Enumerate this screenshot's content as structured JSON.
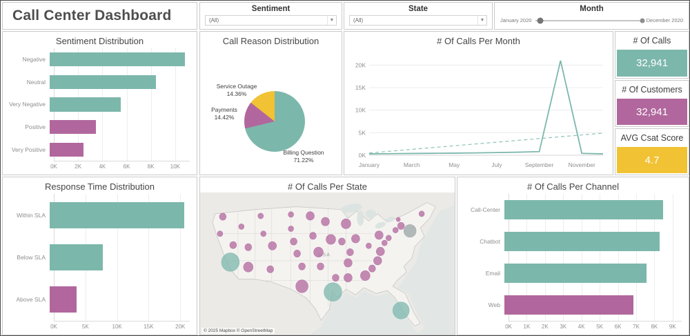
{
  "app": {
    "title": "Call Center Dashboard"
  },
  "palette": {
    "teal": "#7cb7ac",
    "purple": "#b1679d",
    "gray": "#9aa5a4",
    "yellow": "#f1c233"
  },
  "filters": {
    "sentiment": {
      "label": "Sentiment",
      "value": "(All)"
    },
    "state": {
      "label": "State",
      "value": "(All)"
    },
    "month": {
      "label": "Month",
      "start": "January 2020",
      "end": "December 2020"
    }
  },
  "kpis": [
    {
      "label": "# Of Calls",
      "value": "32,941",
      "color": "teal"
    },
    {
      "label": "# Of Customers",
      "value": "32,941",
      "color": "purple"
    },
    {
      "label": "AVG Csat Score",
      "value": "4.7",
      "color": "yellow"
    }
  ],
  "chart_data": [
    {
      "id": "sentiment_distribution",
      "type": "bar",
      "title": "Sentiment Distribution",
      "orientation": "horizontal",
      "categories": [
        "Negative",
        "Neutral",
        "Very Negative",
        "Positive",
        "Very Positive"
      ],
      "values": [
        10800,
        8500,
        5700,
        3700,
        2700
      ],
      "colors": [
        "teal",
        "teal",
        "teal",
        "purple",
        "purple"
      ],
      "xlim": [
        0,
        11200
      ],
      "xticks": {
        "values": [
          0,
          2000,
          4000,
          6000,
          8000,
          10000
        ],
        "labels": [
          "0K",
          "2K",
          "4K",
          "6K",
          "8K",
          "10K"
        ]
      }
    },
    {
      "id": "call_reason",
      "type": "pie",
      "title": "Call Reason Distribution",
      "slices": [
        {
          "label": "Billing Question",
          "value": 71.22,
          "pct_label": "71.22%",
          "color": "teal"
        },
        {
          "label": "Payments",
          "value": 14.42,
          "pct_label": "14.42%",
          "color": "purple"
        },
        {
          "label": "Service Outage",
          "value": 14.36,
          "pct_label": "14.36%",
          "color": "yellow"
        }
      ]
    },
    {
      "id": "calls_per_month",
      "type": "line",
      "title": "# Of Calls Per Month",
      "x": [
        "January",
        "February",
        "March",
        "April",
        "May",
        "June",
        "July",
        "August",
        "September",
        "October",
        "November",
        "December"
      ],
      "values": [
        300,
        340,
        390,
        430,
        470,
        520,
        590,
        680,
        800,
        21000,
        420,
        300
      ],
      "trend_line": [
        500,
        4900
      ],
      "ylim": [
        0,
        22500
      ],
      "yticks": {
        "values": [
          0,
          5000,
          10000,
          15000,
          20000
        ],
        "labels": [
          "0K",
          "5K",
          "10K",
          "15K",
          "20K"
        ]
      },
      "xtick_labels": [
        "January",
        "March",
        "May",
        "July",
        "September",
        "November"
      ]
    },
    {
      "id": "response_time",
      "type": "bar",
      "title": "Response Time Distribution",
      "orientation": "horizontal",
      "categories": [
        "Within SLA",
        "Below SLA",
        "Above SLA"
      ],
      "values": [
        20600,
        8200,
        4100
      ],
      "colors": [
        "teal",
        "teal",
        "purple"
      ],
      "xlim": [
        0,
        21500
      ],
      "xticks": {
        "values": [
          0,
          5000,
          10000,
          15000,
          20000
        ],
        "labels": [
          "0K",
          "5K",
          "10K",
          "15K",
          "20K"
        ]
      }
    },
    {
      "id": "calls_per_state",
      "type": "map",
      "title": "# Of Calls Per State",
      "country_label": "USA",
      "attribution": "© 2025 Mapbox © OpenStreetMap",
      "bubbles": [
        {
          "x": 33,
          "y": 34,
          "r": 5,
          "c": "purple"
        },
        {
          "x": 29,
          "y": 58,
          "r": 4,
          "c": "purple"
        },
        {
          "x": 44,
          "y": 98,
          "r": 13,
          "c": "teal"
        },
        {
          "x": 48,
          "y": 74,
          "r": 5,
          "c": "purple"
        },
        {
          "x": 60,
          "y": 48,
          "r": 4,
          "c": "purple"
        },
        {
          "x": 88,
          "y": 33,
          "r": 4,
          "c": "purple"
        },
        {
          "x": 92,
          "y": 58,
          "r": 4,
          "c": "purple"
        },
        {
          "x": 70,
          "y": 77,
          "r": 5,
          "c": "purple"
        },
        {
          "x": 70,
          "y": 105,
          "r": 7,
          "c": "purple"
        },
        {
          "x": 105,
          "y": 75,
          "r": 6,
          "c": "purple"
        },
        {
          "x": 102,
          "y": 108,
          "r": 5,
          "c": "purple"
        },
        {
          "x": 132,
          "y": 31,
          "r": 4,
          "c": "purple"
        },
        {
          "x": 132,
          "y": 51,
          "r": 4,
          "c": "purple"
        },
        {
          "x": 136,
          "y": 69,
          "r": 5,
          "c": "purple"
        },
        {
          "x": 141,
          "y": 86,
          "r": 5,
          "c": "purple"
        },
        {
          "x": 148,
          "y": 104,
          "r": 5,
          "c": "purple"
        },
        {
          "x": 148,
          "y": 132,
          "r": 9,
          "c": "purple"
        },
        {
          "x": 160,
          "y": 33,
          "r": 6,
          "c": "purple"
        },
        {
          "x": 164,
          "y": 61,
          "r": 5,
          "c": "purple"
        },
        {
          "x": 172,
          "y": 84,
          "r": 7,
          "c": "purple"
        },
        {
          "x": 175,
          "y": 104,
          "r": 5,
          "c": "purple"
        },
        {
          "x": 193,
          "y": 140,
          "r": 13,
          "c": "teal"
        },
        {
          "x": 182,
          "y": 41,
          "r": 6,
          "c": "purple"
        },
        {
          "x": 190,
          "y": 66,
          "r": 7,
          "c": "purple"
        },
        {
          "x": 197,
          "y": 120,
          "r": 5,
          "c": "purple"
        },
        {
          "x": 212,
          "y": 44,
          "r": 7,
          "c": "purple"
        },
        {
          "x": 206,
          "y": 69,
          "r": 5,
          "c": "purple"
        },
        {
          "x": 226,
          "y": 65,
          "r": 6,
          "c": "purple"
        },
        {
          "x": 218,
          "y": 84,
          "r": 5,
          "c": "purple"
        },
        {
          "x": 215,
          "y": 99,
          "r": 6,
          "c": "purple"
        },
        {
          "x": 215,
          "y": 120,
          "r": 6,
          "c": "purple"
        },
        {
          "x": 240,
          "y": 117,
          "r": 7,
          "c": "purple"
        },
        {
          "x": 250,
          "y": 107,
          "r": 5,
          "c": "purple"
        },
        {
          "x": 258,
          "y": 96,
          "r": 6,
          "c": "purple"
        },
        {
          "x": 262,
          "y": 83,
          "r": 6,
          "c": "purple"
        },
        {
          "x": 245,
          "y": 75,
          "r": 4,
          "c": "purple"
        },
        {
          "x": 260,
          "y": 60,
          "r": 6,
          "c": "purple"
        },
        {
          "x": 268,
          "y": 71,
          "r": 4,
          "c": "purple"
        },
        {
          "x": 274,
          "y": 64,
          "r": 4,
          "c": "purple"
        },
        {
          "x": 284,
          "y": 53,
          "r": 4,
          "c": "purple"
        },
        {
          "x": 292,
          "y": 47,
          "r": 5,
          "c": "purple"
        },
        {
          "x": 288,
          "y": 38,
          "r": 3,
          "c": "purple"
        },
        {
          "x": 305,
          "y": 54,
          "r": 9,
          "c": "gray"
        },
        {
          "x": 322,
          "y": 30,
          "r": 4,
          "c": "purple"
        },
        {
          "x": 292,
          "y": 166,
          "r": 12,
          "c": "teal"
        }
      ]
    },
    {
      "id": "calls_per_channel",
      "type": "bar",
      "title": "# Of Calls Per Channel",
      "orientation": "horizontal",
      "categories": [
        "Call-Center",
        "Chatbot",
        "Email",
        "Web"
      ],
      "values": [
        8500,
        8300,
        7600,
        6900
      ],
      "colors": [
        "teal",
        "teal",
        "teal",
        "purple"
      ],
      "xlim": [
        0,
        9500
      ],
      "xticks": {
        "values": [
          0,
          1000,
          2000,
          3000,
          4000,
          5000,
          6000,
          7000,
          8000,
          9000
        ],
        "labels": [
          "0K",
          "1K",
          "2K",
          "3K",
          "4K",
          "5K",
          "6K",
          "7K",
          "8K",
          "9K"
        ]
      }
    }
  ]
}
